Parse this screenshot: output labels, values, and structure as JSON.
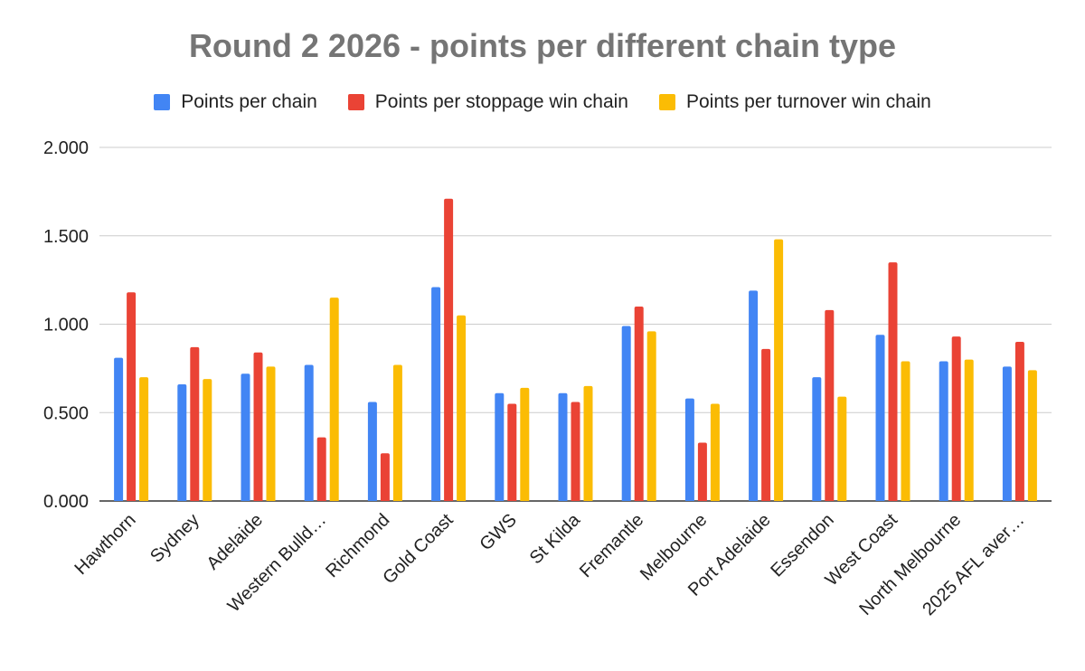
{
  "chart_data": {
    "type": "bar",
    "title": "Round 2 2026 - points per different chain type",
    "xlabel": "",
    "ylabel": "",
    "ylim": [
      0,
      2
    ],
    "yticks": [
      "0.000",
      "0.500",
      "1.000",
      "1.500",
      "2.000"
    ],
    "ytick_values": [
      0,
      0.5,
      1,
      1.5,
      2
    ],
    "grid": true,
    "legend_position": "top",
    "categories": [
      "Hawthorn",
      "Sydney",
      "Adelaide",
      "Western Bulld…",
      "Richmond",
      "Gold Coast",
      "GWS",
      "St Kilda",
      "Fremantle",
      "Melbourne",
      "Port Adelaide",
      "Essendon",
      "West Coast",
      "North Melbourne",
      "2025 AFL aver…"
    ],
    "series": [
      {
        "name": "Points per chain",
        "color": "#4285F4",
        "values": [
          0.81,
          0.66,
          0.72,
          0.77,
          0.56,
          1.21,
          0.61,
          0.61,
          0.99,
          0.58,
          1.19,
          0.7,
          0.94,
          0.79,
          0.76
        ]
      },
      {
        "name": "Points per stoppage win chain",
        "color": "#EA4335",
        "values": [
          1.18,
          0.87,
          0.84,
          0.36,
          0.27,
          1.71,
          0.55,
          0.56,
          1.1,
          0.33,
          0.86,
          1.08,
          1.35,
          0.93,
          0.9
        ]
      },
      {
        "name": "Points per turnover win chain",
        "color": "#FBBC04",
        "values": [
          0.7,
          0.69,
          0.76,
          1.15,
          0.77,
          1.05,
          0.64,
          0.65,
          0.96,
          0.55,
          1.48,
          0.59,
          0.79,
          0.8,
          0.74
        ]
      }
    ]
  }
}
